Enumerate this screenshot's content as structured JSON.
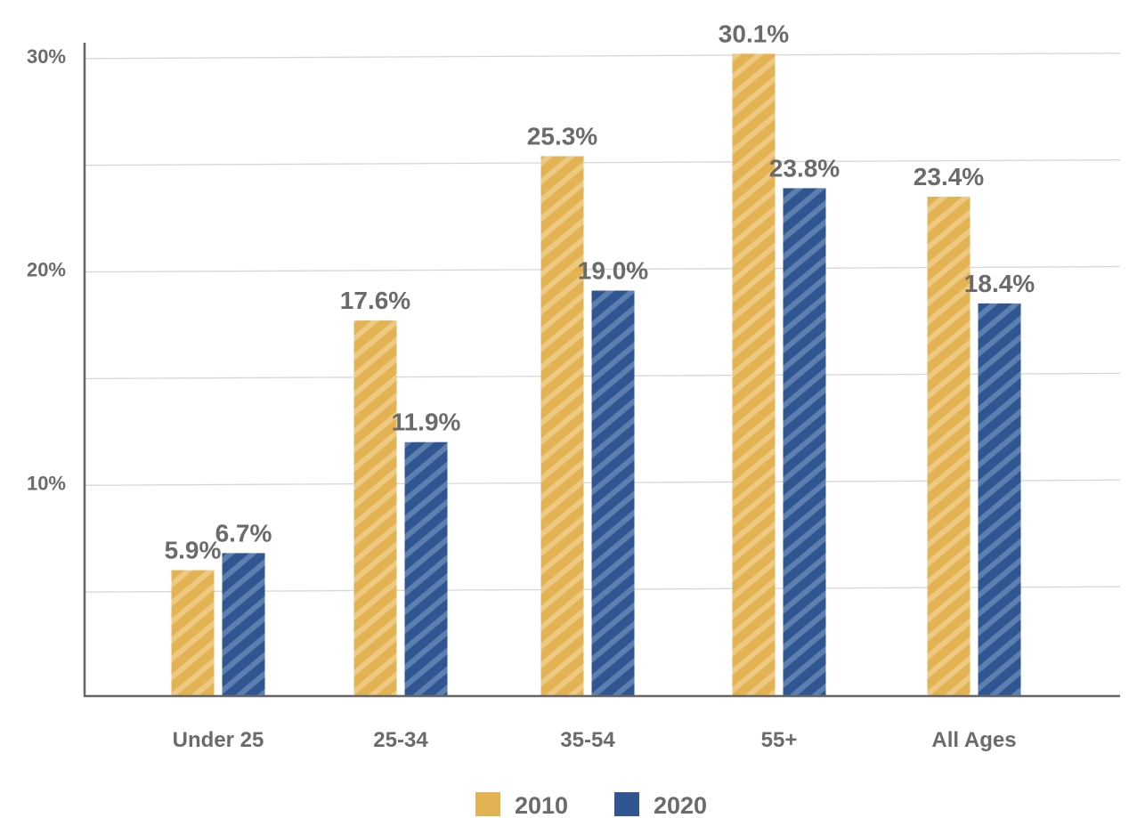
{
  "chart_data": {
    "type": "bar",
    "categories": [
      "Under 25",
      "25-34",
      "35-54",
      "55+",
      "All Ages"
    ],
    "series": [
      {
        "name": "2010",
        "color": "#e3b353",
        "values": [
          5.9,
          17.6,
          25.3,
          30.1,
          23.4
        ],
        "labels": [
          "5.9%",
          "17.6%",
          "25.3%",
          "30.1%",
          "23.4%"
        ]
      },
      {
        "name": "2020",
        "color": "#2f5690",
        "values": [
          6.7,
          11.9,
          19.0,
          23.8,
          18.4
        ],
        "labels": [
          "6.7%",
          "11.9%",
          "19.0%",
          "23.8%",
          "18.4%"
        ]
      }
    ],
    "yticks": [
      10,
      20,
      30
    ],
    "ytick_labels": [
      "10%",
      "20%",
      "30%"
    ],
    "ylim": [
      0,
      30.7
    ],
    "grid": true,
    "legend": "bottom-center",
    "title": "",
    "xlabel": "",
    "ylabel": ""
  }
}
